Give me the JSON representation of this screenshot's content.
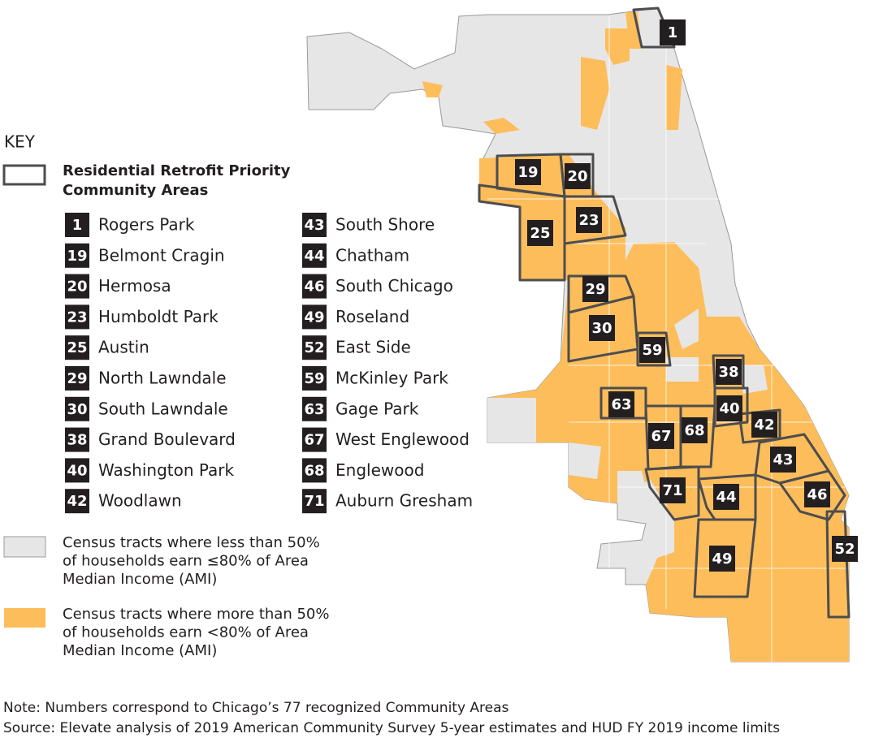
{
  "key": {
    "title": "KEY",
    "priority_label": "Residential Retrofit Priority Community Areas",
    "areas": [
      {
        "number": "1",
        "name": "Rogers Park"
      },
      {
        "number": "19",
        "name": "Belmont Cragin"
      },
      {
        "number": "20",
        "name": "Hermosa"
      },
      {
        "number": "23",
        "name": "Humboldt Park"
      },
      {
        "number": "25",
        "name": "Austin"
      },
      {
        "number": "29",
        "name": "North Lawndale"
      },
      {
        "number": "30",
        "name": "South Lawndale"
      },
      {
        "number": "38",
        "name": "Grand Boulevard"
      },
      {
        "number": "40",
        "name": "Washington Park"
      },
      {
        "number": "42",
        "name": "Woodlawn"
      },
      {
        "number": "43",
        "name": "South Shore"
      },
      {
        "number": "44",
        "name": "Chatham"
      },
      {
        "number": "46",
        "name": "South Chicago"
      },
      {
        "number": "49",
        "name": "Roseland"
      },
      {
        "number": "52",
        "name": "East Side"
      },
      {
        "number": "59",
        "name": "McKinley Park"
      },
      {
        "number": "63",
        "name": "Gage Park"
      },
      {
        "number": "67",
        "name": "West Englewood"
      },
      {
        "number": "68",
        "name": "Englewood"
      },
      {
        "number": "71",
        "name": "Auburn Gresham"
      }
    ],
    "less_than_label": [
      "Census tracts where less than 50%",
      "of households earn ≤80% of Area",
      "Median Income (AMI)"
    ],
    "more_than_label": [
      "Census tracts where more than 50%",
      "of households earn <80% of Area",
      "Median Income (AMI)"
    ]
  },
  "footer": {
    "note": "Note: Numbers correspond to Chicago’s 77 recognized Community Areas",
    "source": "Source: Elevate analysis of 2019 American Community Survey 5-year estimates and HUD FY 2019 income limits"
  }
}
